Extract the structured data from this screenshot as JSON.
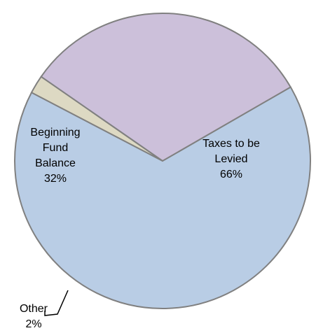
{
  "chart_data": {
    "type": "pie",
    "title": "",
    "slices": [
      {
        "label_lines": [
          "Taxes to be",
          "Levied"
        ],
        "value": 66,
        "value_label": "66%",
        "color": "#b9cde5"
      },
      {
        "label_lines": [
          "Other"
        ],
        "value": 2,
        "value_label": "2%",
        "color": "#ddd9c3"
      },
      {
        "label_lines": [
          "Beginning",
          "Fund",
          "Balance"
        ],
        "value": 32,
        "value_label": "32%",
        "color": "#ccc0da"
      }
    ],
    "start_angle_deg": -30,
    "legend": "none",
    "slice_border_color": "#808080"
  }
}
